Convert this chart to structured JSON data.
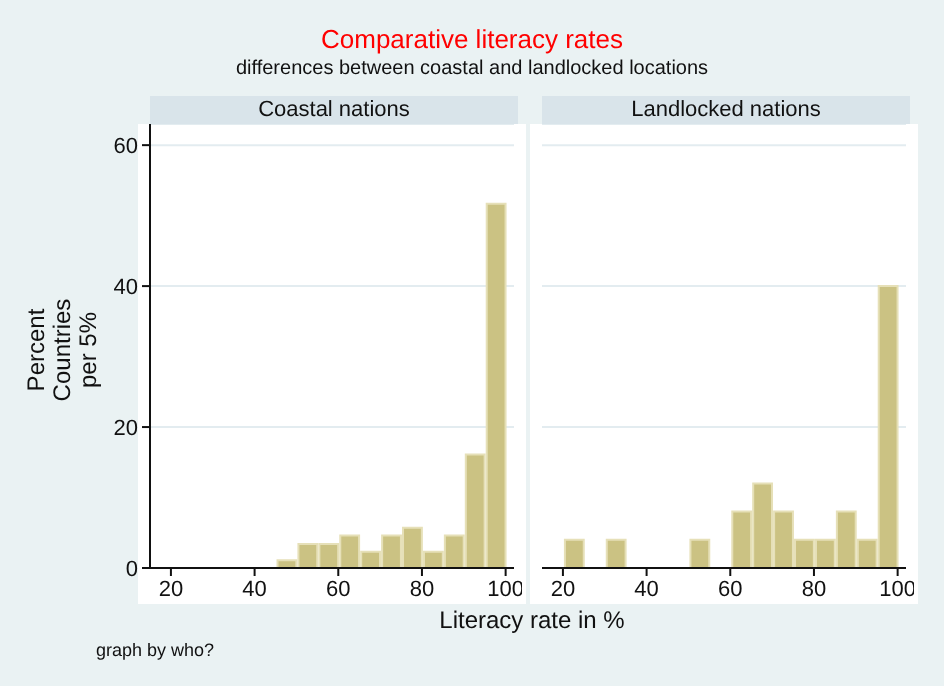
{
  "chart_data": [
    {
      "type": "histogram",
      "title": "Comparative literacy rates",
      "subtitle": "differences between coastal and landlocked locations",
      "xlabel": "Literacy rate in %",
      "ylabel": "Percent\nCountries\nper 5%",
      "annotations": [
        "Coastal nations",
        "graph by who?"
      ],
      "bins": [
        45,
        50,
        55,
        60,
        65,
        70,
        75,
        80,
        85,
        90,
        95,
        100
      ],
      "values": [
        1.1,
        3.4,
        3.4,
        4.6,
        2.3,
        4.6,
        5.7,
        2.3,
        4.6,
        16.1,
        51.7
      ],
      "color": "#cbc283",
      "xlim": [
        15,
        102
      ],
      "xticks": [
        20,
        40,
        60,
        80,
        100
      ],
      "ylim": [
        0,
        63
      ],
      "yticks": [
        0,
        20,
        40,
        60
      ],
      "grid": "y"
    },
    {
      "type": "histogram",
      "annotations": [
        "Landlocked nations"
      ],
      "bins": [
        20,
        25,
        30,
        35,
        40,
        45,
        50,
        55,
        60,
        65,
        70,
        75,
        80,
        85,
        90,
        95,
        100
      ],
      "values": [
        4,
        0,
        4,
        0,
        0,
        0,
        4,
        0,
        8,
        12,
        8,
        4,
        4,
        8,
        4,
        40
      ],
      "color": "#cbc283",
      "xlim": [
        15,
        102
      ],
      "xticks": [
        20,
        40,
        60,
        80,
        100
      ],
      "ylim": [
        0,
        63
      ],
      "yticks": [
        0,
        20,
        40,
        60
      ],
      "grid": "y",
      "tick_labels": "x"
    }
  ]
}
